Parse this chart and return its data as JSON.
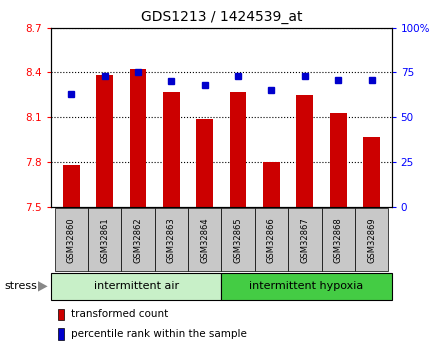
{
  "title": "GDS1213 / 1424539_at",
  "categories": [
    "GSM32860",
    "GSM32861",
    "GSM32862",
    "GSM32863",
    "GSM32864",
    "GSM32865",
    "GSM32866",
    "GSM32867",
    "GSM32868",
    "GSM32869"
  ],
  "bar_values": [
    7.78,
    8.38,
    8.42,
    8.27,
    8.09,
    8.27,
    7.8,
    8.25,
    8.13,
    7.97
  ],
  "percentile_values": [
    63,
    73,
    75,
    70,
    68,
    73,
    65,
    73,
    71,
    71
  ],
  "ylim_left": [
    7.5,
    8.7
  ],
  "ylim_right": [
    0,
    100
  ],
  "yticks_left": [
    7.5,
    7.8,
    8.1,
    8.4,
    8.7
  ],
  "yticks_right": [
    0,
    25,
    50,
    75,
    100
  ],
  "bar_color": "#cc0000",
  "dot_color": "#0000cc",
  "bar_width": 0.5,
  "group1_label": "intermittent air",
  "group2_label": "intermittent hypoxia",
  "group1_color": "#c8f0c8",
  "group2_color": "#44cc44",
  "stress_label": "stress",
  "legend_bar_label": "transformed count",
  "legend_dot_label": "percentile rank within the sample",
  "tick_label_bg": "#c8c8c8",
  "figsize": [
    4.45,
    3.45
  ],
  "dpi": 100
}
